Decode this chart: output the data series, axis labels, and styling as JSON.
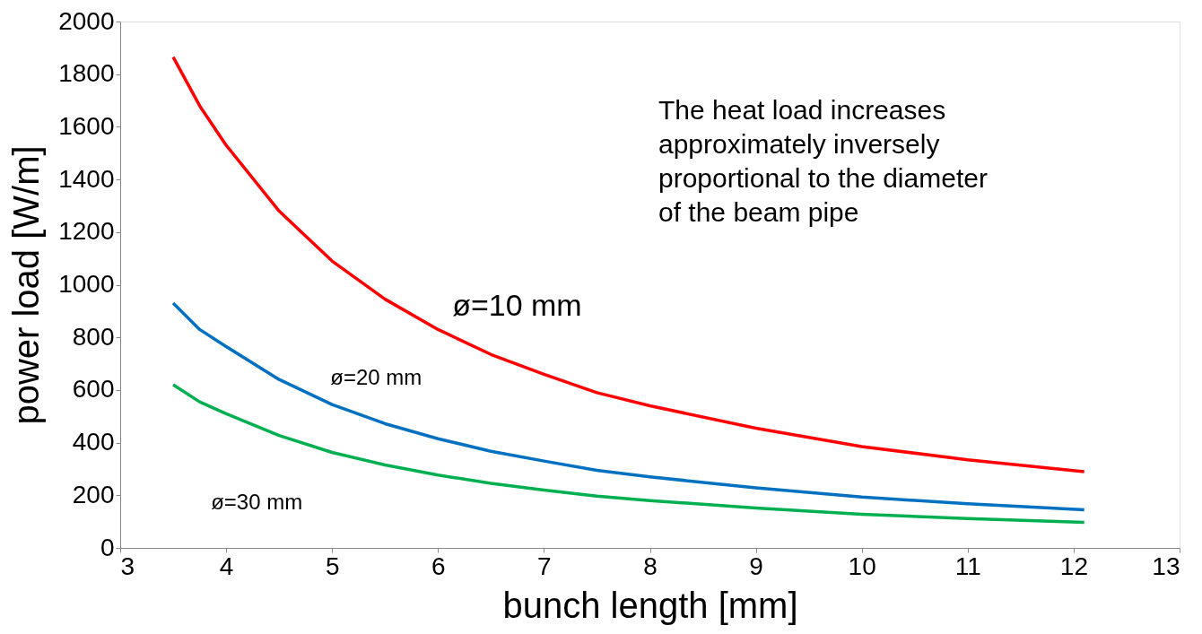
{
  "chart_data": {
    "type": "line",
    "xlabel": "bunch length [mm]",
    "ylabel": "power load [W/m]",
    "x": [
      3.5,
      3.75,
      4,
      4.5,
      5,
      5.5,
      6,
      6.5,
      7,
      7.5,
      8,
      9,
      10,
      11,
      12.1
    ],
    "series": [
      {
        "name": "ø=10 mm",
        "color": "#ff0000",
        "values": [
          1865,
          1680,
          1530,
          1280,
          1090,
          945,
          830,
          735,
          660,
          590,
          540,
          455,
          385,
          335,
          290
        ]
      },
      {
        "name": "ø=20 mm",
        "color": "#0070c0",
        "values": [
          930,
          830,
          765,
          640,
          545,
          472,
          415,
          367,
          330,
          295,
          270,
          228,
          193,
          168,
          145
        ]
      },
      {
        "name": "ø=30 mm",
        "color": "#00b050",
        "values": [
          620,
          555,
          510,
          427,
          363,
          315,
          277,
          245,
          220,
          197,
          180,
          152,
          128,
          112,
          97
        ]
      }
    ],
    "xlim": [
      3,
      13
    ],
    "xticks": [
      3,
      4,
      5,
      6,
      7,
      8,
      9,
      10,
      11,
      12,
      13
    ],
    "ylim": [
      0,
      2000
    ],
    "yticks": [
      0,
      200,
      400,
      600,
      800,
      1000,
      1200,
      1400,
      1600,
      1800,
      2000
    ],
    "grid": false,
    "legend": false,
    "marker": "none",
    "line_style": "solid",
    "annotations": [
      "The heat load increases\napproximately inversely\nproportional to the  diameter\nof the beam pipe"
    ]
  }
}
